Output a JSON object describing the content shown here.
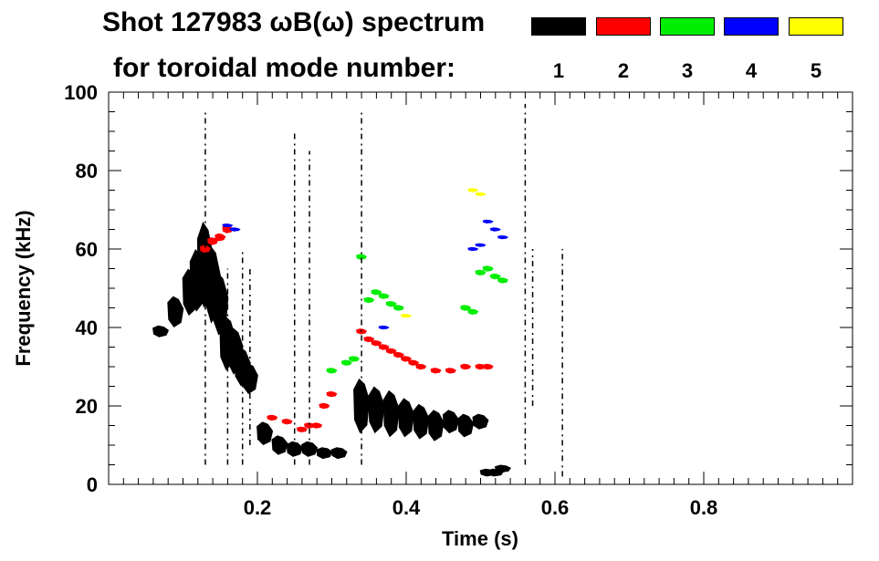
{
  "chart_data": {
    "type": "heatmap",
    "title_line1": "Shot 127983 ωB(ω) spectrum",
    "title_line2": "for toroidal mode number:",
    "xlabel": "Time (s)",
    "ylabel": "Frequency (kHz)",
    "xlim": [
      0.0,
      1.0
    ],
    "ylim": [
      0,
      100
    ],
    "x_ticks": [
      0.2,
      0.4,
      0.6,
      0.8
    ],
    "x_tick_labels": [
      "0.2",
      "0.4",
      "0.6",
      "0.8"
    ],
    "y_ticks": [
      0,
      20,
      40,
      60,
      80,
      100
    ],
    "y_tick_labels": [
      "0",
      "20",
      "40",
      "60",
      "80",
      "100"
    ],
    "legend": [
      {
        "mode": "1",
        "color": "#000000"
      },
      {
        "mode": "2",
        "color": "#ff0000"
      },
      {
        "mode": "3",
        "color": "#00ee00"
      },
      {
        "mode": "4",
        "color": "#0000ff"
      },
      {
        "mode": "5",
        "color": "#ffff00"
      }
    ],
    "series": [
      {
        "mode": "1",
        "color": "#000000",
        "t": [
          0.07,
          0.09,
          0.11,
          0.12,
          0.13,
          0.14,
          0.15,
          0.16,
          0.17,
          0.18,
          0.19,
          0.21,
          0.23,
          0.25,
          0.27,
          0.29,
          0.31,
          0.34,
          0.36,
          0.38,
          0.4,
          0.42,
          0.44,
          0.46,
          0.48,
          0.5,
          0.51,
          0.52,
          0.53
        ],
        "f": [
          39,
          44,
          49,
          52,
          56,
          51,
          46,
          36,
          34,
          30,
          27,
          13,
          10,
          9,
          9,
          8,
          8,
          20,
          19,
          18,
          17,
          16,
          15,
          16,
          15,
          16,
          3,
          3,
          4
        ],
        "w": [
          3,
          8,
          12,
          16,
          22,
          20,
          16,
          14,
          12,
          10,
          8,
          6,
          5,
          4,
          4,
          3,
          3,
          14,
          12,
          12,
          10,
          9,
          8,
          6,
          6,
          4,
          2,
          2,
          2
        ]
      },
      {
        "mode": "2",
        "color": "#ff0000",
        "t": [
          0.13,
          0.14,
          0.15,
          0.16,
          0.22,
          0.24,
          0.26,
          0.27,
          0.28,
          0.29,
          0.3,
          0.34,
          0.35,
          0.36,
          0.37,
          0.38,
          0.39,
          0.4,
          0.41,
          0.42,
          0.44,
          0.46,
          0.48,
          0.5,
          0.51
        ],
        "f": [
          60,
          62,
          63,
          65,
          17,
          16,
          14,
          15,
          15,
          20,
          23,
          39,
          37,
          36,
          35,
          34,
          33,
          32,
          31,
          30,
          29,
          29,
          30,
          30,
          30
        ],
        "w": [
          2,
          2,
          2,
          2,
          1.5,
          1.5,
          1.5,
          1.5,
          1.5,
          1.5,
          1.5,
          1.5,
          1.5,
          1.5,
          1.5,
          1.5,
          1.5,
          1.5,
          1.5,
          1.5,
          1.5,
          1.5,
          1.5,
          1.5,
          1.5
        ]
      },
      {
        "mode": "3",
        "color": "#00ee00",
        "t": [
          0.3,
          0.32,
          0.33,
          0.34,
          0.35,
          0.36,
          0.37,
          0.38,
          0.39,
          0.48,
          0.49,
          0.5,
          0.51,
          0.52,
          0.53
        ],
        "f": [
          29,
          31,
          32,
          58,
          47,
          49,
          48,
          46,
          45,
          45,
          44,
          54,
          55,
          53,
          52
        ],
        "w": [
          1.5,
          1.5,
          1.5,
          1.5,
          1.5,
          1.5,
          1.5,
          1.5,
          1.5,
          1.5,
          1.5,
          1.5,
          1.5,
          1.5,
          1.5
        ]
      },
      {
        "mode": "4",
        "color": "#0000ff",
        "t": [
          0.16,
          0.17,
          0.37,
          0.49,
          0.5,
          0.51,
          0.52,
          0.53
        ],
        "f": [
          66,
          65,
          40,
          60,
          61,
          67,
          65,
          63
        ],
        "w": [
          1,
          1,
          1,
          1,
          1,
          1,
          1,
          1
        ]
      },
      {
        "mode": "5",
        "color": "#ffff00",
        "t": [
          0.49,
          0.5,
          0.4
        ],
        "f": [
          75,
          74,
          43
        ],
        "w": [
          1,
          1,
          1
        ]
      }
    ]
  }
}
